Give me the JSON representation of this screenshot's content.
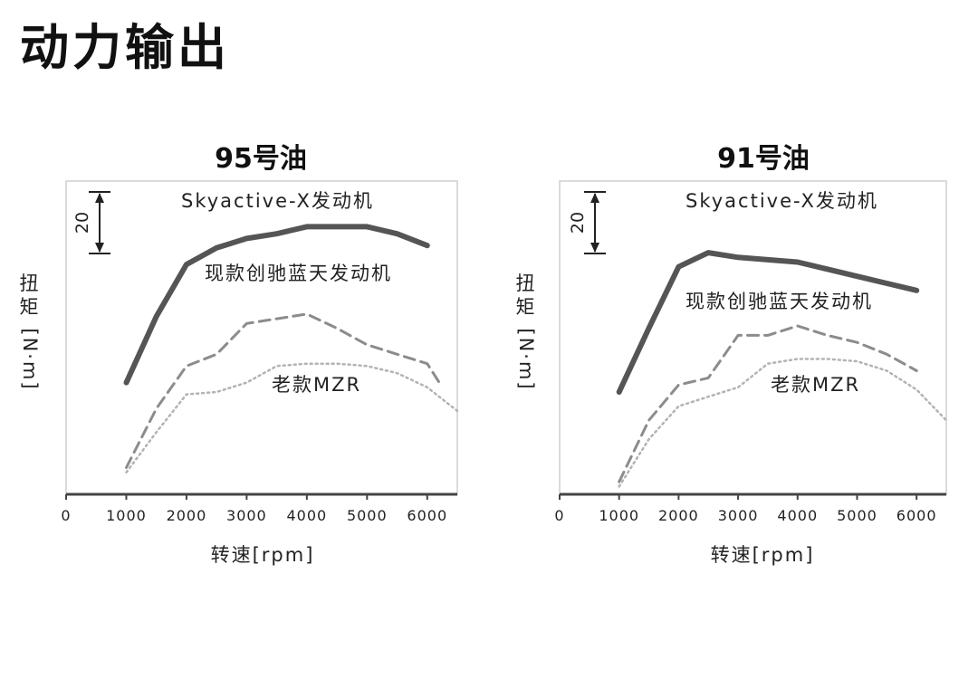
{
  "page_title": "动力输出",
  "chart_data": [
    {
      "type": "line",
      "title": "95号油",
      "xlabel": "转速[rpm]",
      "ylabel_chars": [
        "扭",
        "矩"
      ],
      "ylabel_unit": "[N·m]",
      "xlim": [
        0,
        6500
      ],
      "x_ticks": [
        0,
        1000,
        2000,
        3000,
        4000,
        5000,
        6000
      ],
      "scale_bar_label": "20",
      "scale_bar_value": 20,
      "series": [
        {
          "name": "Skyactive-X发动机",
          "style": "solid",
          "color": "#555555",
          "x": [
            1000,
            1500,
            2000,
            2500,
            3000,
            3500,
            4000,
            4500,
            5000,
            5500,
            6000
          ],
          "y": [
            144,
            172,
            194,
            201,
            205,
            207,
            210,
            210,
            210,
            207,
            202
          ]
        },
        {
          "name": "现款创驰蓝天发动机",
          "style": "dashed",
          "color": "#8c8c8c",
          "x": [
            1000,
            1500,
            2000,
            2500,
            3000,
            3500,
            4000,
            4500,
            5000,
            5500,
            6000,
            6200
          ],
          "y": [
            108,
            133,
            151,
            156,
            169,
            171,
            173,
            167,
            160,
            156,
            152,
            144
          ]
        },
        {
          "name": "老款MZR",
          "style": "dotted",
          "color": "#b3b3b3",
          "x": [
            1000,
            1500,
            2000,
            2500,
            3000,
            3500,
            4000,
            4500,
            5000,
            5500,
            6000,
            6500
          ],
          "y": [
            106,
            123,
            139,
            140,
            144,
            151,
            152,
            152,
            151,
            148,
            142,
            132
          ]
        }
      ]
    },
    {
      "type": "line",
      "title": "91号油",
      "xlabel": "转速[rpm]",
      "ylabel_chars": [
        "扭",
        "矩"
      ],
      "ylabel_unit": "[N·m]",
      "xlim": [
        0,
        6500
      ],
      "x_ticks": [
        0,
        1000,
        2000,
        3000,
        4000,
        5000,
        6000
      ],
      "scale_bar_label": "20",
      "scale_bar_value": 20,
      "series": [
        {
          "name": "Skyactive-X发动机",
          "style": "solid",
          "color": "#555555",
          "x": [
            1000,
            1500,
            2000,
            2500,
            3000,
            3500,
            4000,
            4500,
            5000,
            5500,
            6000
          ],
          "y": [
            140,
            167,
            193,
            199,
            197,
            196,
            195,
            192,
            189,
            186,
            183
          ]
        },
        {
          "name": "现款创驰蓝天发动机",
          "style": "dashed",
          "color": "#8c8c8c",
          "x": [
            1000,
            1500,
            2000,
            2500,
            3000,
            3500,
            4000,
            4500,
            5000,
            5500,
            6000
          ],
          "y": [
            102,
            128,
            143,
            146,
            164,
            164,
            168,
            164,
            161,
            156,
            149
          ]
        },
        {
          "name": "老款MZR",
          "style": "dotted",
          "color": "#b3b3b3",
          "x": [
            1000,
            1500,
            2000,
            2500,
            3000,
            3500,
            4000,
            4500,
            5000,
            5500,
            6000,
            6500
          ],
          "y": [
            100,
            120,
            134,
            138,
            142,
            152,
            154,
            154,
            153,
            149,
            141,
            128
          ]
        }
      ]
    }
  ]
}
